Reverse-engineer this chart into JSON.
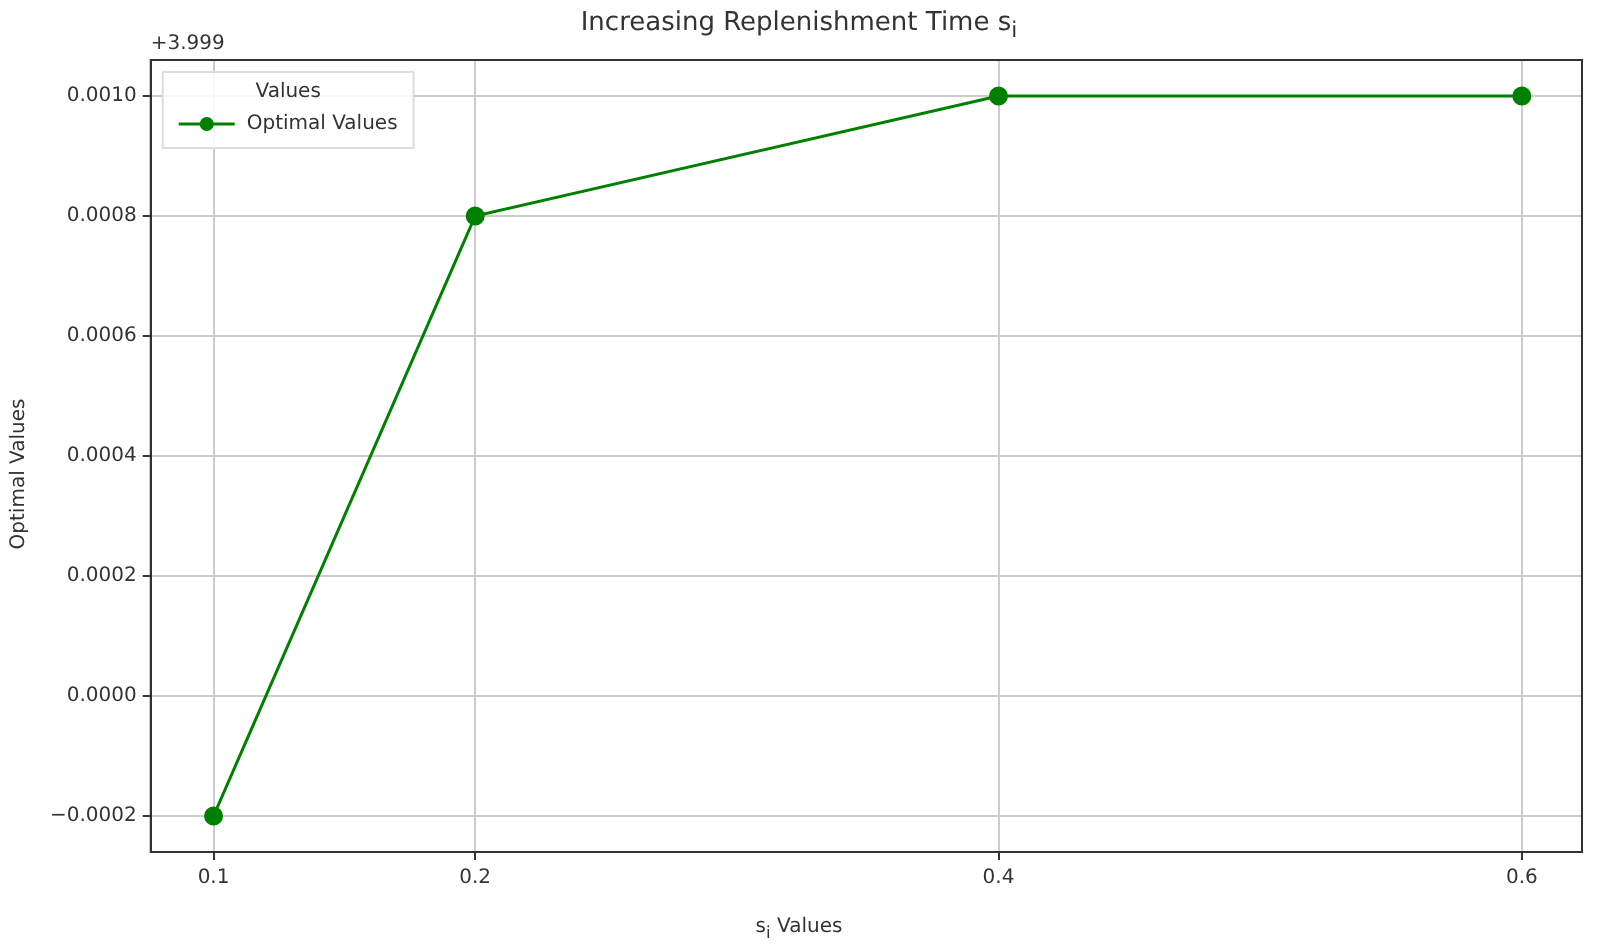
{
  "chart_data": {
    "type": "line",
    "title": "Increasing Replenishment Time s$_{i}$",
    "xlabel": "s$_{i}$ Values",
    "ylabel": "Optimal Values",
    "legend_title": "Values",
    "x": [
      0.1,
      0.2,
      0.4,
      0.6
    ],
    "series": [
      {
        "name": "Optimal Values",
        "color": "#008000",
        "values": [
          -0.0002,
          0.0008,
          0.001,
          0.001
        ]
      }
    ],
    "xlim": [
      0.076,
      0.623
    ],
    "xticks": [
      0.1,
      0.2,
      0.4,
      0.6
    ],
    "ylim": [
      -0.00026,
      0.00106
    ],
    "yticks": [
      {
        "value": -0.0002,
        "label": "−0.0002"
      },
      {
        "value": 0,
        "label": "0.0000"
      },
      {
        "value": 0.0002,
        "label": "0.0002"
      },
      {
        "value": 0.0004,
        "label": "0.0004"
      },
      {
        "value": 0.0006,
        "label": "0.0006"
      },
      {
        "value": 0.0008,
        "label": "0.0008"
      },
      {
        "value": 0.001,
        "label": "0.0010"
      }
    ],
    "annotations": [
      "+3.999"
    ],
    "grid": true,
    "legend": "top left",
    "marker": "circle",
    "line_style": "solid"
  }
}
